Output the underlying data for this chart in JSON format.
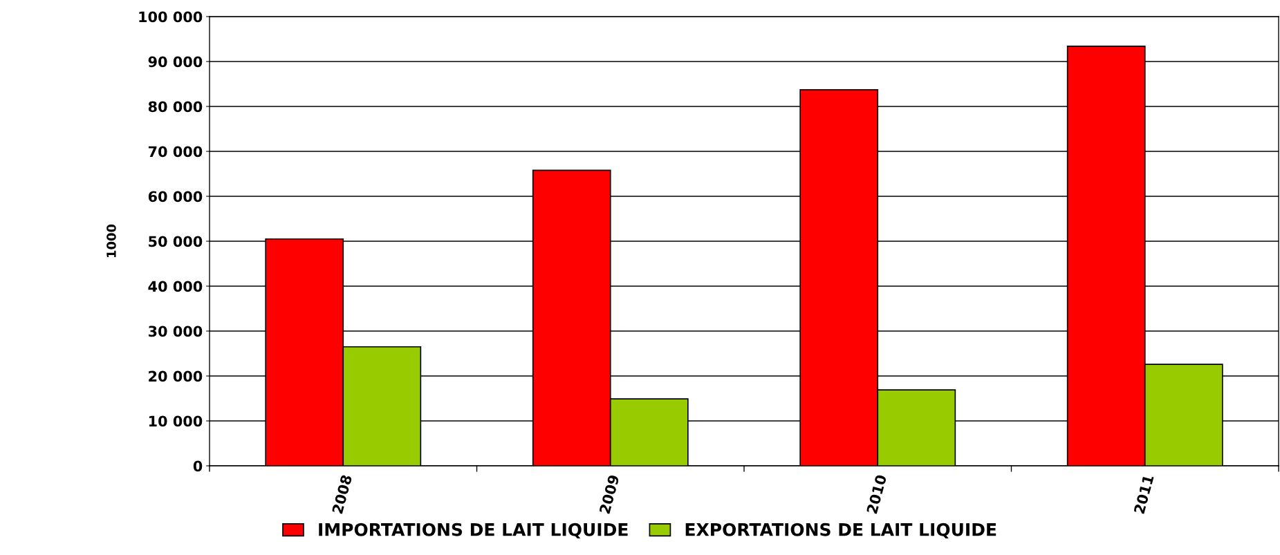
{
  "chart_data": {
    "type": "bar",
    "ylabel": "1000",
    "categories": [
      "2008",
      "2009",
      "2010",
      "2011"
    ],
    "series": [
      {
        "name": "IMPORTATIONS DE LAIT LIQUIDE",
        "color": "#ff0000",
        "values": [
          50500,
          65800,
          83700,
          93400
        ]
      },
      {
        "name": "EXPORTATIONS DE LAIT LIQUIDE",
        "color": "#99cc00",
        "values": [
          26500,
          14900,
          16900,
          22600
        ]
      }
    ],
    "ylim": [
      0,
      100000
    ],
    "yticks": [
      {
        "value": 0,
        "label": "0"
      },
      {
        "value": 10000,
        "label": "10 000"
      },
      {
        "value": 20000,
        "label": "20 000"
      },
      {
        "value": 30000,
        "label": "30 000"
      },
      {
        "value": 40000,
        "label": "40 000"
      },
      {
        "value": 50000,
        "label": "50 000"
      },
      {
        "value": 60000,
        "label": "60 000"
      },
      {
        "value": 70000,
        "label": "70 000"
      },
      {
        "value": 80000,
        "label": "80 000"
      },
      {
        "value": 90000,
        "label": "90 000"
      },
      {
        "value": 100000,
        "label": "100 000"
      }
    ],
    "grid": "y",
    "legend": "bottom"
  }
}
